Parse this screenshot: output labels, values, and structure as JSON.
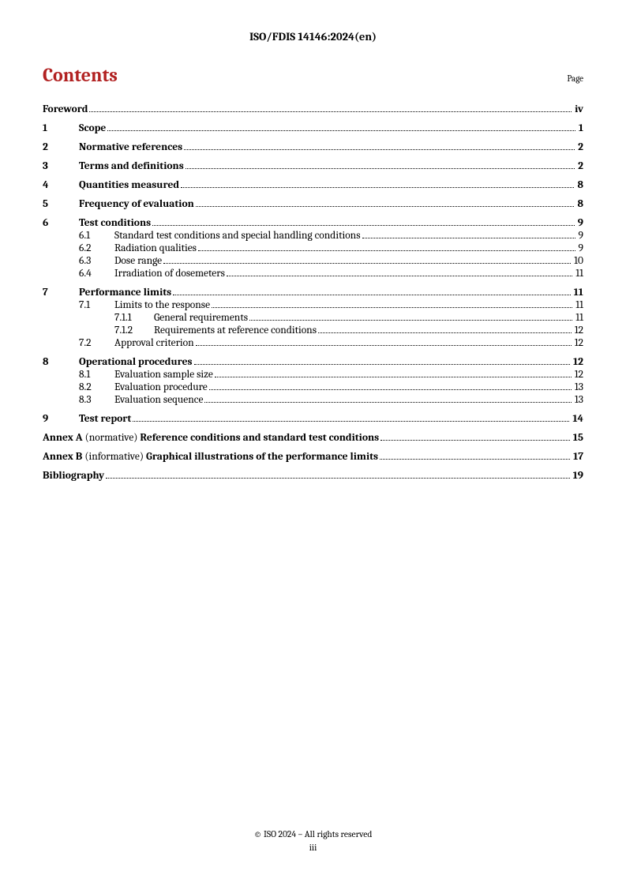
{
  "header": "ISO/FDIS 14146:2024(en)",
  "title": "Contents",
  "page_label": "Page",
  "foreword": {
    "label": "Foreword",
    "page": "iv"
  },
  "sections": [
    {
      "num": "1",
      "label": "Scope",
      "page": "1"
    },
    {
      "num": "2",
      "label": "Normative references",
      "page": "2"
    },
    {
      "num": "3",
      "label": "Terms and definitions",
      "page": "2"
    },
    {
      "num": "4",
      "label": "Quantities measured",
      "page": "8"
    },
    {
      "num": "5",
      "label": "Frequency of evaluation",
      "page": "8"
    },
    {
      "num": "6",
      "label": "Test conditions",
      "page": "9",
      "subs": [
        {
          "num": "6.1",
          "label": "Standard test conditions and special handling conditions",
          "page": "9"
        },
        {
          "num": "6.2",
          "label": "Radiation qualities",
          "page": "9"
        },
        {
          "num": "6.3",
          "label": "Dose range",
          "page": "10"
        },
        {
          "num": "6.4",
          "label": "Irradiation of dosemeters",
          "page": "11"
        }
      ]
    },
    {
      "num": "7",
      "label": "Performance limits",
      "page": "11",
      "subs": [
        {
          "num": "7.1",
          "label": "Limits to the response",
          "page": "11",
          "subs": [
            {
              "num": "7.1.1",
              "label": "General requirements",
              "page": "11"
            },
            {
              "num": "7.1.2",
              "label": "Requirements at reference conditions",
              "page": "12"
            }
          ]
        },
        {
          "num": "7.2",
          "label": "Approval criterion",
          "page": "12"
        }
      ]
    },
    {
      "num": "8",
      "label": "Operational procedures",
      "page": "12",
      "subs": [
        {
          "num": "8.1",
          "label": "Evaluation sample size",
          "page": "12"
        },
        {
          "num": "8.2",
          "label": "Evaluation procedure",
          "page": "13"
        },
        {
          "num": "8.3",
          "label": "Evaluation sequence",
          "page": "13"
        }
      ]
    },
    {
      "num": "9",
      "label": "Test report",
      "page": "14"
    }
  ],
  "annexes": [
    {
      "letter": "Annex A",
      "type": "(normative)",
      "title": "Reference conditions and standard test conditions",
      "page": "15"
    },
    {
      "letter": "Annex B",
      "type": "(informative)",
      "title": "Graphical illustrations of the performance limits",
      "page": "17"
    }
  ],
  "bibliography": {
    "label": "Bibliography",
    "page": "19"
  },
  "footer": {
    "copyright": "© ISO 2024 – All rights reserved",
    "pagenum": "iii"
  }
}
